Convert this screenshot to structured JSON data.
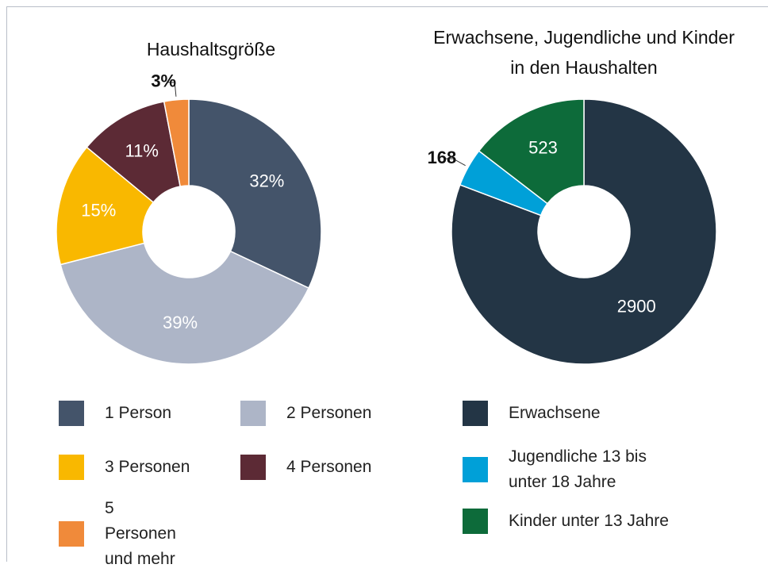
{
  "chart_data": [
    {
      "type": "pie",
      "title": "Haushaltsgröße",
      "categories": [
        "1 Person",
        "2 Personen",
        "3 Personen",
        "4 Personen",
        "5 Personen und mehr"
      ],
      "values": [
        32,
        39,
        15,
        11,
        3
      ],
      "value_labels": [
        "32%",
        "39%",
        "15%",
        "11%",
        "3%"
      ],
      "colors": [
        "#44546a",
        "#adb5c7",
        "#f9b800",
        "#5c2a35",
        "#f08a3a"
      ]
    },
    {
      "type": "pie",
      "title": "Erwachsene, Jugendliche und Kinder in den Haushalten",
      "categories": [
        "Erwachsene",
        "Jugendliche 13 bis unter 18 Jahre",
        "Kinder unter 13 Jahre"
      ],
      "values": [
        2900,
        168,
        523
      ],
      "colors": [
        "#233545",
        "#00a0d8",
        "#0d6b3a"
      ]
    }
  ]
}
